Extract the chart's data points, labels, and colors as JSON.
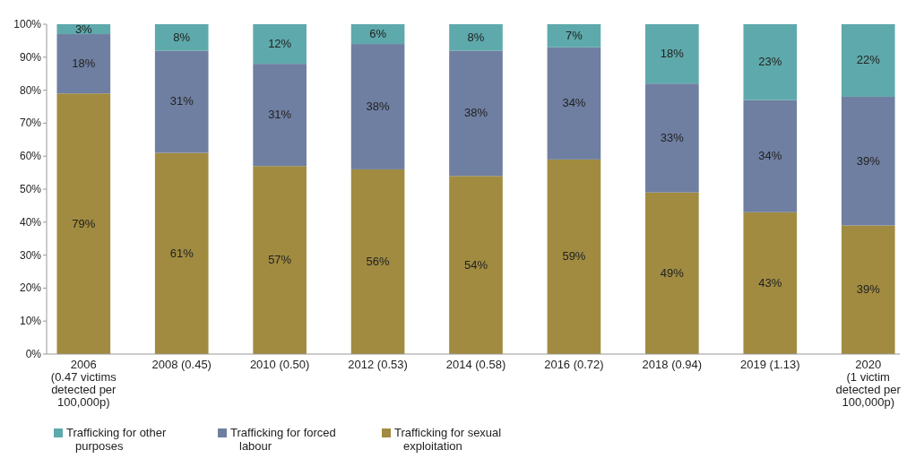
{
  "chart_data": {
    "type": "bar",
    "stacked": true,
    "legend": "bottom left",
    "grid": false,
    "categories": [
      "2006\n(0.47 victims\ndetected per\n100,000p)",
      "2008 (0.45)",
      "2010 (0.50)",
      "2012 (0.53)",
      "2014 (0.58)",
      "2016 (0.72)",
      "2018 (0.94)",
      "2019 (1.13)",
      "2020\n(1 victim\ndetected per\n100,000p)"
    ],
    "series": [
      {
        "name": "Trafficking for sexual exploitation",
        "color": "#a08b40",
        "values": [
          79,
          61,
          57,
          56,
          54,
          59,
          49,
          43,
          39
        ],
        "value_labels": [
          "79%",
          "61%",
          "57%",
          "56%",
          "54%",
          "59%",
          "49%",
          "43%",
          "39%"
        ]
      },
      {
        "name": "Trafficking for forced labour",
        "color": "#6f7fa1",
        "values": [
          18,
          31,
          31,
          38,
          38,
          34,
          33,
          34,
          39
        ],
        "value_labels": [
          "18%",
          "31%",
          "31%",
          "38%",
          "38%",
          "34%",
          "33%",
          "34%",
          "39%"
        ]
      },
      {
        "name": "Trafficking for other purposes",
        "color": "#5ea9ab",
        "values": [
          3,
          8,
          12,
          6,
          8,
          7,
          18,
          23,
          22
        ],
        "value_labels": [
          "3%",
          "8%",
          "12%",
          "6%",
          "8%",
          "7%",
          "18%",
          "23%",
          "22%"
        ]
      }
    ],
    "ylim": [
      0,
      100
    ],
    "yticks": [
      {
        "value": 0,
        "label": "0%"
      },
      {
        "value": 10,
        "label": "10%"
      },
      {
        "value": 20,
        "label": "20%"
      },
      {
        "value": 30,
        "label": "30%"
      },
      {
        "value": 40,
        "label": "40%"
      },
      {
        "value": 50,
        "label": "50%"
      },
      {
        "value": 60,
        "label": "60%"
      },
      {
        "value": 70,
        "label": "70%"
      },
      {
        "value": 80,
        "label": "80%"
      },
      {
        "value": 90,
        "label": "90%"
      },
      {
        "value": 100,
        "label": "100%"
      }
    ]
  }
}
